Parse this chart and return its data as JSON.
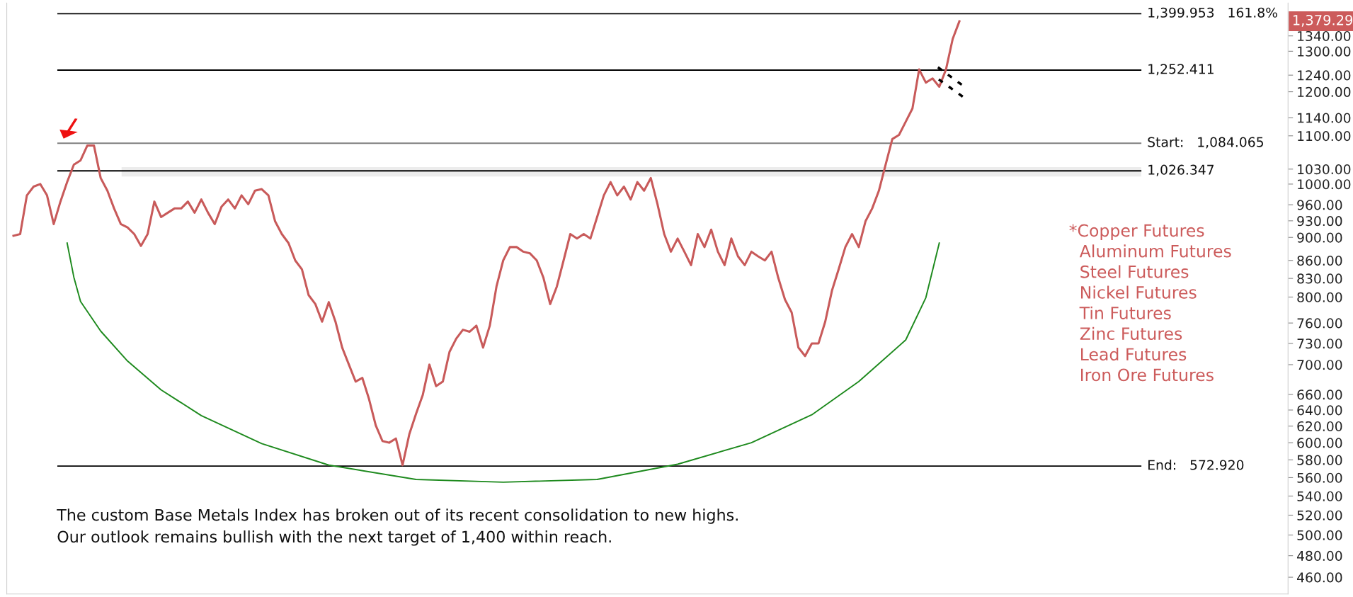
{
  "chart_data": {
    "type": "line",
    "categories": [
      null,
      null,
      null,
      null,
      null,
      null,
      null,
      null,
      null,
      null,
      null,
      null,
      null,
      null,
      null,
      null,
      null,
      null,
      null,
      null,
      null,
      null,
      null,
      null,
      null,
      null,
      null,
      null,
      null,
      null,
      null,
      null,
      null,
      null,
      null,
      null,
      null,
      null,
      null,
      null,
      null,
      null,
      null,
      null,
      null,
      null,
      null,
      null,
      null,
      null,
      null,
      null,
      null,
      null,
      null,
      null,
      null,
      null,
      null,
      null,
      null,
      null,
      null,
      null,
      null,
      null,
      null,
      null,
      null,
      null,
      null,
      null,
      null,
      null,
      null,
      null,
      null,
      null,
      null,
      null,
      null,
      null,
      null,
      null,
      null,
      null,
      null,
      null,
      null,
      null,
      null,
      null,
      null,
      null,
      null,
      null,
      null,
      null,
      null,
      null,
      null,
      null,
      null,
      null,
      null,
      null,
      null,
      null,
      null,
      null,
      null,
      null,
      null,
      null,
      null,
      null,
      null,
      null,
      null,
      null,
      null,
      null,
      null,
      null,
      null,
      null,
      null,
      null,
      null,
      null,
      null,
      null,
      null,
      null,
      null,
      null,
      null,
      null,
      null,
      null,
      null,
      null
    ],
    "series": [
      {
        "color": "#c85a5a",
        "values": [
          903,
          906,
          978,
          995,
          1000,
          978,
          924,
          966,
          1004,
          1039,
          1048,
          1079,
          1079,
          1012,
          987,
          953,
          924,
          918,
          906,
          885,
          906,
          966,
          937,
          945,
          953,
          953,
          966,
          945,
          970,
          945,
          924,
          956,
          970,
          953,
          978,
          961,
          987,
          990,
          978,
          929,
          906,
          890,
          860,
          845,
          803,
          789,
          762,
          792,
          762,
          724,
          700,
          677,
          682,
          654,
          621,
          602,
          600,
          605,
          574,
          610,
          635,
          659,
          700,
          671,
          677,
          718,
          737,
          750,
          747,
          756,
          724,
          756,
          817,
          860,
          883,
          883,
          875,
          872,
          860,
          831,
          789,
          817,
          860,
          906,
          898,
          906,
          898,
          937,
          978,
          1004,
          978,
          995,
          970,
          1004,
          987,
          1012,
          961,
          906,
          875,
          898,
          875,
          852,
          906,
          883,
          914,
          875,
          852,
          898,
          867,
          852,
          875,
          867,
          860,
          875,
          831,
          796,
          776,
          724,
          712,
          730,
          730,
          762,
          810,
          845,
          883,
          906,
          883,
          929,
          953,
          987,
          1039,
          1093,
          1102,
          1131,
          1161,
          1254,
          1222,
          1232,
          1212,
          1254,
          1332,
          1379.29
        ]
      },
      {
        "color": "#1e8a1e",
        "values": [
          null,
          null,
          null,
          null,
          null,
          null,
          null,
          null,
          890,
          832,
          793,
          null,
          null,
          748,
          null,
          null,
          null,
          705,
          null,
          null,
          null,
          null,
          666,
          null,
          null,
          null,
          null,
          null,
          633,
          null,
          null,
          null,
          null,
          null,
          null,
          null,
          null,
          599,
          null,
          null,
          null,
          null,
          null,
          null,
          null,
          null,
          null,
          574,
          null,
          null,
          null,
          null,
          null,
          null,
          null,
          null,
          null,
          null,
          null,
          null,
          558,
          null,
          null,
          null,
          null,
          null,
          null,
          null,
          null,
          null,
          null,
          null,
          null,
          555,
          null,
          null,
          null,
          null,
          null,
          null,
          null,
          null,
          null,
          null,
          null,
          null,
          null,
          558,
          null,
          null,
          null,
          null,
          null,
          null,
          null,
          null,
          null,
          null,
          null,
          575,
          null,
          null,
          null,
          null,
          null,
          null,
          null,
          null,
          null,
          null,
          600,
          null,
          null,
          null,
          null,
          null,
          null,
          null,
          null,
          634,
          null,
          null,
          null,
          null,
          null,
          null,
          677,
          null,
          null,
          null,
          null,
          null,
          null,
          735,
          null,
          null,
          799,
          null,
          890,
          null,
          null,
          null
        ]
      }
    ],
    "log": "y",
    "ylim": [
      445,
      1430
    ],
    "yticks": [
      {
        "value": 460,
        "label": "460.00"
      },
      {
        "value": 480,
        "label": "480.00"
      },
      {
        "value": 500,
        "label": "500.00"
      },
      {
        "value": 520,
        "label": "520.00"
      },
      {
        "value": 540,
        "label": "540.00"
      },
      {
        "value": 560,
        "label": "560.00"
      },
      {
        "value": 580,
        "label": "580.00"
      },
      {
        "value": 600,
        "label": "600.00"
      },
      {
        "value": 620,
        "label": "620.00"
      },
      {
        "value": 640,
        "label": "640.00"
      },
      {
        "value": 660,
        "label": "660.00"
      },
      {
        "value": 700,
        "label": "700.00"
      },
      {
        "value": 730,
        "label": "730.00"
      },
      {
        "value": 760,
        "label": "760.00"
      },
      {
        "value": 800,
        "label": "800.00"
      },
      {
        "value": 830,
        "label": "830.00"
      },
      {
        "value": 860,
        "label": "860.00"
      },
      {
        "value": 900,
        "label": "900.00"
      },
      {
        "value": 930,
        "label": "930.00"
      },
      {
        "value": 960,
        "label": "960.00"
      },
      {
        "value": 1000,
        "label": "1000.00"
      },
      {
        "value": 1030,
        "label": "1030.00"
      },
      {
        "value": 1100,
        "label": "1100.00"
      },
      {
        "value": 1140,
        "label": "1140.00"
      },
      {
        "value": 1200,
        "label": "1200.00"
      },
      {
        "value": 1240,
        "label": "1240.00"
      },
      {
        "value": 1300,
        "label": "1300.00"
      },
      {
        "value": 1340,
        "label": "1340.00"
      }
    ],
    "tick_labels": "y",
    "grid": false,
    "ref_lines": [
      {
        "axis": "y",
        "value": 1399.953,
        "label": "1,399.953   161.8%",
        "color": "#000000"
      },
      {
        "axis": "y",
        "value": 1252.411,
        "label": "1,252.411",
        "color": "#000000"
      },
      {
        "axis": "y",
        "value": 1084.065,
        "label": "Start:   1,084.065",
        "color": "#808080"
      },
      {
        "axis": "y",
        "value": 1026.347,
        "label": "1,026.347",
        "color": "#000000"
      },
      {
        "axis": "y",
        "value": 572.92,
        "label": "End:   572.920",
        "color": "#000000"
      }
    ],
    "bands": [
      {
        "axis": "y",
        "from": 1016,
        "to": 1033,
        "color": "#ececec"
      }
    ],
    "annotations": [
      "*Copper Futures\n  Aluminum Futures\n  Steel Futures\n  Nickel Futures\n  Tin Futures\n  Zinc Futures\n  Lead Futures\n  Iron Ore Futures",
      "The custom Base Metals Index has broken out of its recent consolidation to new highs.\nOur outlook remains bullish with the next target of 1,400 within reach.",
      "1,379.29"
    ]
  }
}
